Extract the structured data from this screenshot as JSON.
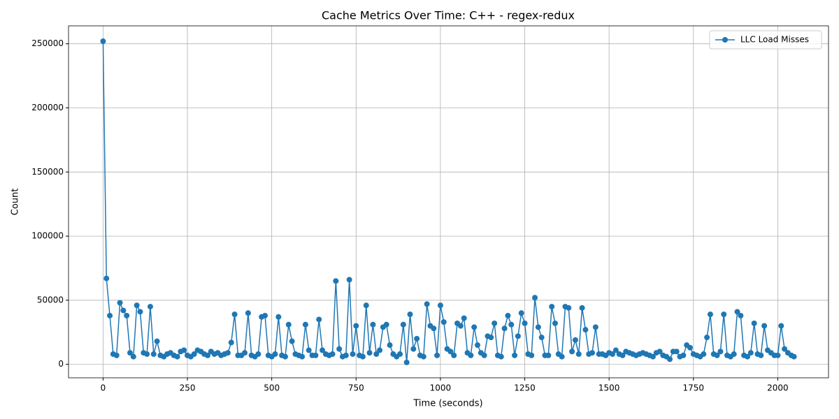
{
  "chart_data": {
    "type": "line",
    "title": "Cache Metrics Over Time: C++ - regex-redux",
    "x_label": "Time (seconds)",
    "y_label": "Count",
    "x": [
      0,
      10,
      20,
      30,
      40,
      50,
      60,
      70,
      80,
      90,
      100,
      110,
      120,
      130,
      140,
      150,
      160,
      170,
      180,
      190,
      200,
      210,
      220,
      230,
      240,
      250,
      260,
      270,
      280,
      290,
      300,
      310,
      320,
      330,
      340,
      350,
      360,
      370,
      380,
      390,
      400,
      410,
      420,
      430,
      440,
      450,
      460,
      470,
      480,
      490,
      500,
      510,
      520,
      530,
      540,
      550,
      560,
      570,
      580,
      590,
      600,
      610,
      620,
      630,
      640,
      650,
      660,
      670,
      680,
      690,
      700,
      710,
      720,
      730,
      740,
      750,
      760,
      770,
      780,
      790,
      800,
      810,
      820,
      830,
      840,
      850,
      860,
      870,
      880,
      890,
      900,
      910,
      920,
      930,
      940,
      950,
      960,
      970,
      980,
      990,
      1000,
      1010,
      1020,
      1030,
      1040,
      1050,
      1060,
      1070,
      1080,
      1090,
      1100,
      1110,
      1120,
      1130,
      1140,
      1150,
      1160,
      1170,
      1180,
      1190,
      1200,
      1210,
      1220,
      1230,
      1240,
      1250,
      1260,
      1270,
      1280,
      1290,
      1300,
      1310,
      1320,
      1330,
      1340,
      1350,
      1360,
      1370,
      1380,
      1390,
      1400,
      1410,
      1420,
      1430,
      1440,
      1450,
      1460,
      1470,
      1480,
      1490,
      1500,
      1510,
      1520,
      1530,
      1540,
      1550,
      1560,
      1570,
      1580,
      1590,
      1600,
      1610,
      1620,
      1630,
      1640,
      1650,
      1660,
      1670,
      1680,
      1690,
      1700,
      1710,
      1720,
      1730,
      1740,
      1750,
      1760,
      1770,
      1780,
      1790,
      1800,
      1810,
      1820,
      1830,
      1840,
      1850,
      1860,
      1870,
      1880,
      1890,
      1900,
      1910,
      1920,
      1930,
      1940,
      1950,
      1960,
      1970,
      1980,
      1990,
      2000,
      2010,
      2020,
      2030,
      2040,
      2048
    ],
    "series": [
      {
        "name": "LLC Load Misses",
        "color": "#1f77b4",
        "values": [
          252000,
          67000,
          38000,
          8000,
          7000,
          48000,
          42000,
          38000,
          9000,
          6000,
          46000,
          41000,
          9000,
          8000,
          45000,
          8000,
          18000,
          7000,
          6000,
          8000,
          9000,
          7000,
          6000,
          10000,
          11000,
          7000,
          6000,
          8000,
          11000,
          10000,
          8000,
          7000,
          10000,
          8000,
          9000,
          7000,
          8000,
          9000,
          17000,
          39000,
          7000,
          7000,
          9000,
          40000,
          7000,
          6000,
          8000,
          37000,
          38000,
          7000,
          6000,
          8000,
          37000,
          7000,
          6000,
          31000,
          18000,
          8000,
          7000,
          6000,
          31000,
          11000,
          7000,
          7000,
          35000,
          11000,
          8000,
          7000,
          8000,
          65000,
          12000,
          6000,
          7000,
          66000,
          8000,
          30000,
          7000,
          6000,
          46000,
          9000,
          31000,
          8000,
          11000,
          29000,
          31000,
          15000,
          8000,
          6000,
          8000,
          31000,
          1500,
          39000,
          12000,
          20000,
          7000,
          6000,
          47000,
          30000,
          28000,
          7000,
          46000,
          33000,
          12000,
          10000,
          7000,
          32000,
          30000,
          36000,
          9000,
          7000,
          29000,
          15000,
          9000,
          7000,
          22000,
          21000,
          32000,
          7000,
          6000,
          28000,
          38000,
          31000,
          7000,
          22000,
          40000,
          32000,
          8000,
          7000,
          52000,
          29000,
          21000,
          7000,
          7000,
          45000,
          32000,
          8000,
          6000,
          45000,
          44000,
          10000,
          19000,
          8000,
          44000,
          27000,
          8000,
          9000,
          29000,
          8000,
          8000,
          7000,
          9000,
          8000,
          11000,
          8000,
          7000,
          10000,
          9000,
          8000,
          7000,
          8000,
          9000,
          8000,
          7000,
          6000,
          9000,
          10000,
          7000,
          6000,
          4000,
          10000,
          10000,
          6000,
          7000,
          15000,
          13000,
          8000,
          7000,
          6000,
          8000,
          21000,
          39000,
          8000,
          7000,
          10000,
          39000,
          7000,
          6000,
          8000,
          41000,
          38000,
          7000,
          6000,
          9000,
          32000,
          8000,
          7000,
          30000,
          11000,
          9000,
          7000,
          7000,
          30000,
          12000,
          9000,
          7000,
          6000
        ]
      }
    ],
    "xlim": [
      -102.4,
      2150.4
    ],
    "ylim": [
      -10500,
      264000
    ],
    "xticks": [
      0,
      250,
      500,
      750,
      1000,
      1250,
      1500,
      1750,
      2000
    ],
    "yticks": [
      0,
      50000,
      100000,
      150000,
      200000,
      250000
    ],
    "grid": true,
    "legend": "upper right"
  }
}
